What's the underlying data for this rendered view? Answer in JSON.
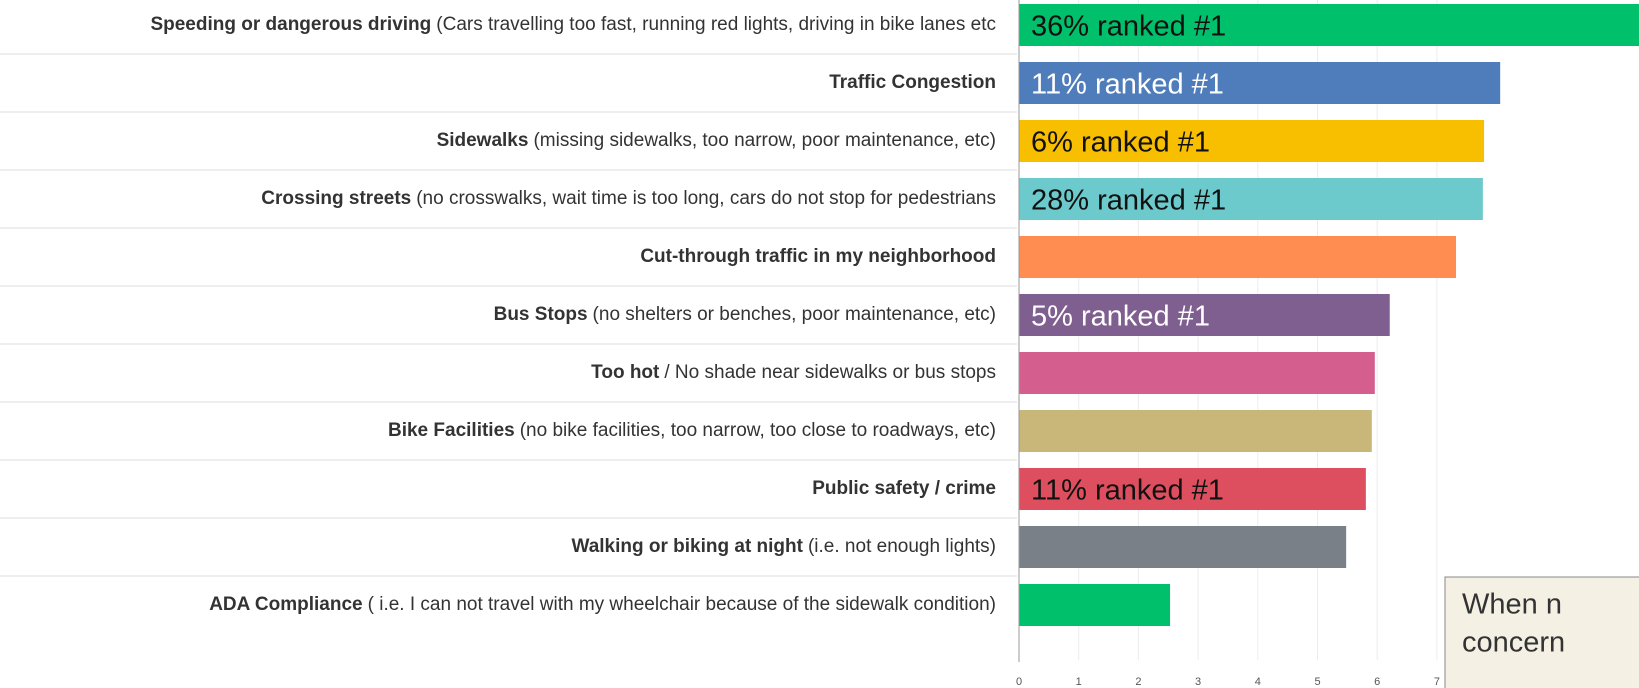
{
  "chart_data": {
    "type": "bar",
    "categories": [
      {
        "bold": "Speeding or dangerous driving",
        "detail": "(Cars travelling too fast, running red lights, driving in bike lanes etc"
      },
      {
        "bold": "Traffic Congestion",
        "detail": null
      },
      {
        "bold": "Sidewalks",
        "detail": "(missing sidewalks, too narrow, poor maintenance, etc)"
      },
      {
        "bold": "Crossing streets",
        "detail": "(no crosswalks, wait time is too long, cars do not stop for pedestrians"
      },
      {
        "bold": "Cut-through traffic in my neighborhood",
        "detail": null
      },
      {
        "bold": "Bus Stops",
        "detail": "(no shelters or benches, poor maintenance, etc)"
      },
      {
        "bold": "Too hot",
        "detail": "/ No shade near sidewalks or bus stops"
      },
      {
        "bold": "Bike Facilities",
        "detail": "(no bike facilities, too narrow, too close to roadways, etc)"
      },
      {
        "bold": "Public safety / crime",
        "detail": null
      },
      {
        "bold": "Walking or biking at night",
        "detail": "(i.e. not enough lights)"
      },
      {
        "bold": "ADA Compliance",
        "detail": "( i.e. I can not travel with my wheelchair because of the sidewalk condition)"
      }
    ],
    "values": [
      10.6,
      8.06,
      7.79,
      7.77,
      7.32,
      6.21,
      5.96,
      5.91,
      5.81,
      5.48,
      2.53
    ],
    "colors": [
      "#00c06b",
      "#4f7cba",
      "#f8be00",
      "#6ccacc",
      "#ff8c50",
      "#7f5e90",
      "#d45f8f",
      "#c9b77a",
      "#dd4f5f",
      "#7a8087",
      "#00c06b"
    ],
    "annotations": [
      "36% ranked #1",
      "11% ranked #1",
      "6% ranked #1",
      "28% ranked #1",
      null,
      "5% ranked #1",
      null,
      null,
      "11% ranked #1",
      null,
      null
    ],
    "annotation_colors": [
      "#111111",
      "#ffffff",
      "#111111",
      "#111111",
      null,
      "#ffffff",
      null,
      null,
      "#111111",
      null,
      null
    ],
    "xlim": [
      0,
      10.4
    ],
    "xticks": [
      0,
      1,
      2,
      3,
      4,
      5,
      6,
      7
    ],
    "grid": true,
    "note": [
      "When n",
      "concern"
    ]
  }
}
